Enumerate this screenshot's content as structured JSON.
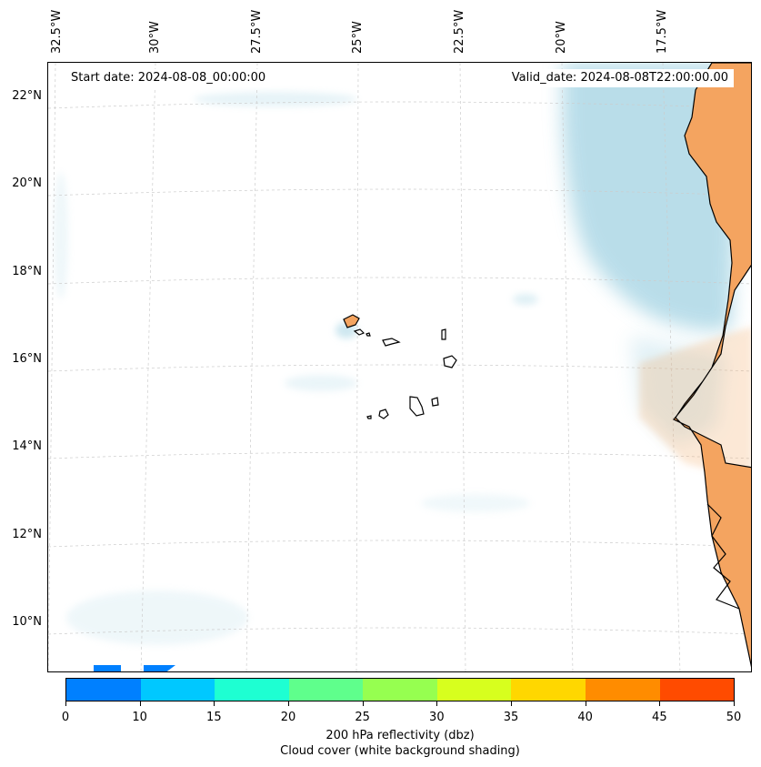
{
  "map": {
    "start_date_label": "Start date: 2024-08-08_00:00:00",
    "valid_date_label": "Valid_date: 2024-08-08T22:00:00.00",
    "longitude_labels": [
      "32.5°W",
      "30°W",
      "27.5°W",
      "25°W",
      "22.5°W",
      "20°W",
      "17.5°W"
    ],
    "latitude_labels": [
      "22°N",
      "20°N",
      "18°N",
      "16°N",
      "14°N",
      "12°N",
      "10°N"
    ],
    "land_color": "#f4a460",
    "cloud_color": "#add8e6",
    "coastline_color": "#000000",
    "grid_color": "#cccccc"
  },
  "colorbar": {
    "colors": [
      "#0080ff",
      "#00c8ff",
      "#1effd2",
      "#5fff8c",
      "#96ff50",
      "#d7ff1e",
      "#ffd700",
      "#ff8c00",
      "#ff4b00"
    ],
    "tick_labels": [
      "0",
      "10",
      "15",
      "20",
      "25",
      "30",
      "35",
      "40",
      "45",
      "50"
    ],
    "label_line1": "200 hPa reflectivity (dbz)",
    "label_line2": "Cloud cover (white background shading)"
  }
}
